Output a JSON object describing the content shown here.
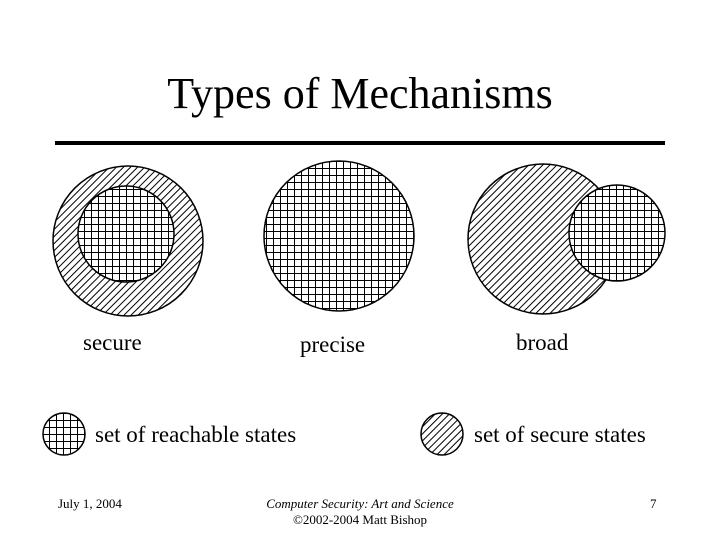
{
  "slide": {
    "title": "Types of Mechanisms",
    "diagrams": {
      "secure": "secure",
      "precise": "precise",
      "broad": "broad"
    },
    "legend": {
      "reachable": "set of reachable states",
      "secure": "set of secure states"
    }
  },
  "footer": {
    "date": "July 1, 2004",
    "course": "Computer Security: Art and Science",
    "copyright": "©2002-2004 Matt Bishop",
    "page": "7"
  },
  "patterns": {
    "grid": "reachable-states-crosshatch",
    "hatch": "secure-states-diagonal-hatch"
  }
}
